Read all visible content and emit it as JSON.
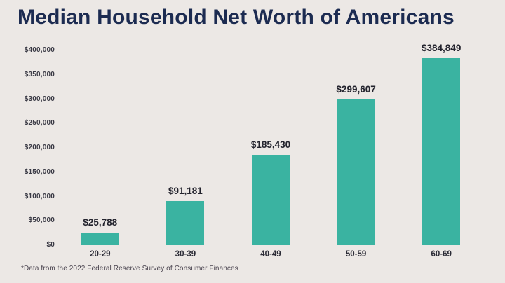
{
  "chart_data": {
    "type": "bar",
    "title": "Median Household Net Worth of Americans",
    "categories": [
      "20-29",
      "30-39",
      "40-49",
      "50-59",
      "60-69"
    ],
    "values": [
      25788,
      91181,
      185430,
      299607,
      384849
    ],
    "value_labels": [
      "$25,788",
      "$91,181",
      "$185,430",
      "$299,607",
      "$384,849"
    ],
    "ylim": [
      0,
      400000
    ],
    "yticks": [
      {
        "value": 0,
        "label": "$0"
      },
      {
        "value": 50000,
        "label": "$50,000"
      },
      {
        "value": 100000,
        "label": "$100,000"
      },
      {
        "value": 150000,
        "label": "$150,000"
      },
      {
        "value": 200000,
        "label": "$200,000"
      },
      {
        "value": 250000,
        "label": "$250,000"
      },
      {
        "value": 300000,
        "label": "$300,000"
      },
      {
        "value": 350000,
        "label": "$350,000"
      },
      {
        "value": 400000,
        "label": "$400,000"
      }
    ],
    "grid": false,
    "legend": "none",
    "xlabel": "",
    "ylabel": "",
    "footnote": "*Data from the 2022 Federal Reserve Survey of Consumer Finances"
  },
  "colors": {
    "background": "#ece8e5",
    "bar": "#3ab3a1",
    "title": "#1c2b51",
    "tick_text": "#3a3a45",
    "value_text": "#23232d",
    "footnote_text": "#4b4550"
  }
}
